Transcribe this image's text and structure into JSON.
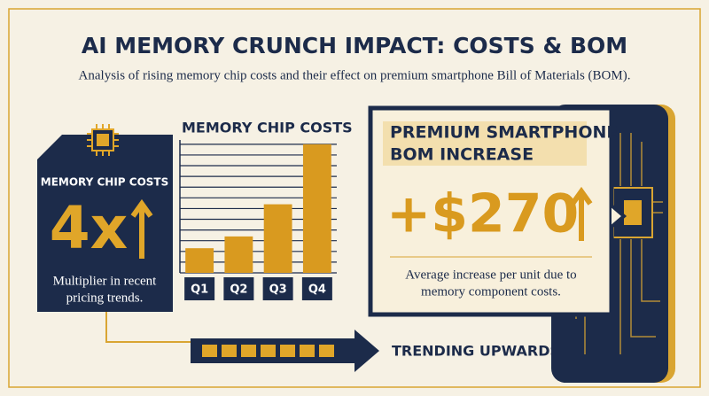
{
  "header": {
    "title": "AI MEMORY CRUNCH IMPACT: COSTS & BOM",
    "subtitle": "Analysis of rising memory chip costs and their effect on premium smartphone Bill of Materials (BOM)."
  },
  "left_card": {
    "label": "MEMORY CHIP COSTS",
    "big": "4x",
    "description": [
      "Multiplier in recent",
      "pricing trends."
    ]
  },
  "chart_data": {
    "type": "bar",
    "title": "MEMORY CHIP COSTS",
    "categories": [
      "Q1",
      "Q2",
      "Q3",
      "Q4"
    ],
    "values": [
      2.3,
      3.4,
      6.4,
      12
    ],
    "color": "#d99a1f",
    "ylim": [
      0,
      12.4
    ],
    "yticks": [
      0,
      1,
      2,
      3,
      4,
      5,
      6,
      7,
      8,
      9,
      10,
      11,
      12
    ],
    "grid": true
  },
  "right_card": {
    "title": [
      "PREMIUM SMARTPHONE",
      "BOM INCREASE"
    ],
    "big": "+$270",
    "description": [
      "Average increase per unit due to",
      "memory component costs."
    ]
  },
  "footer": {
    "trend": "TRENDING UPWARDS"
  }
}
